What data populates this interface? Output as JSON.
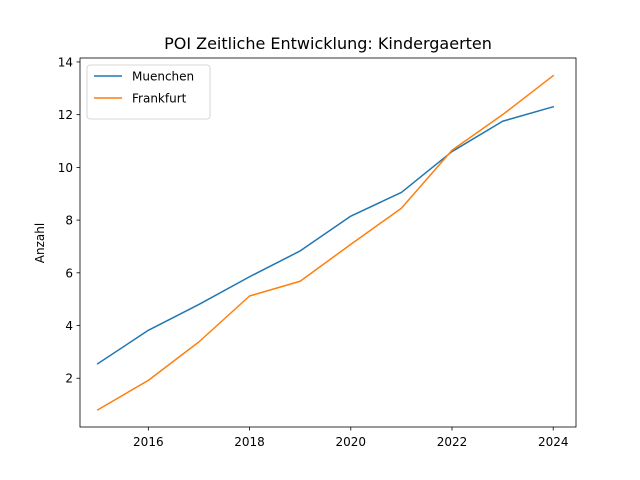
{
  "chart_data": {
    "type": "line",
    "title": "POI Zeitliche Entwicklung: Kindergaerten",
    "xlabel": "",
    "ylabel": "Anzahl",
    "x": [
      2015,
      2016,
      2017,
      2018,
      2019,
      2020,
      2021,
      2022,
      2023,
      2024
    ],
    "xlim": [
      2014.65,
      2024.45
    ],
    "ylim": [
      0.15,
      14.15
    ],
    "xticks": [
      2016,
      2018,
      2020,
      2022,
      2024
    ],
    "yticks": [
      2,
      4,
      6,
      8,
      10,
      12,
      14
    ],
    "grid": false,
    "legend_position": "upper-left",
    "series": [
      {
        "name": "Muenchen",
        "color": "#1f77b4",
        "values": [
          2.55,
          3.82,
          4.8,
          5.85,
          6.83,
          8.15,
          9.05,
          10.6,
          11.75,
          12.3
        ]
      },
      {
        "name": "Frankfurt",
        "color": "#ff7f0e",
        "values": [
          0.8,
          1.92,
          3.38,
          5.12,
          5.68,
          7.08,
          8.45,
          10.65,
          12.0,
          13.48
        ]
      }
    ]
  }
}
